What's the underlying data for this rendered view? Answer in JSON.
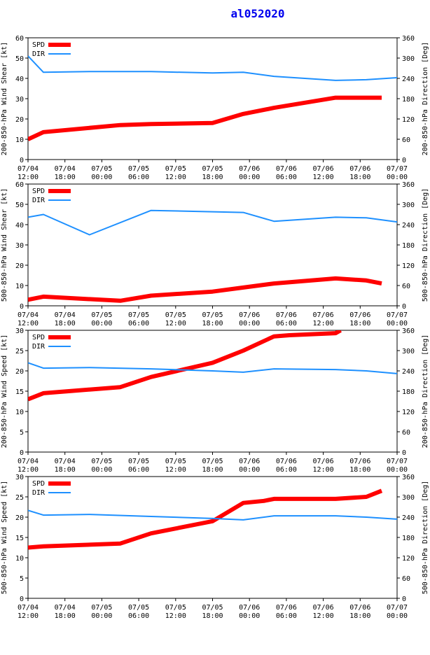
{
  "title": "al052020",
  "colors": {
    "spd": "#ff0000",
    "dir": "#1e90ff",
    "axis": "#000000",
    "title": "#0000ee"
  },
  "legend": {
    "spd": "SPD",
    "dir": "DIR"
  },
  "x_ticks": [
    [
      "07/04",
      "12:00"
    ],
    [
      "07/04",
      "18:00"
    ],
    [
      "07/05",
      "00:00"
    ],
    [
      "07/05",
      "06:00"
    ],
    [
      "07/05",
      "12:00"
    ],
    [
      "07/05",
      "18:00"
    ],
    [
      "07/06",
      "00:00"
    ],
    [
      "07/06",
      "06:00"
    ],
    [
      "07/06",
      "12:00"
    ],
    [
      "07/06",
      "18:00"
    ],
    [
      "07/07",
      "00:00"
    ]
  ],
  "chart_data": [
    {
      "type": "line",
      "ylabel_left": "200-850-hPa Wind Shear [kt]",
      "ylabel_right": "200-850-hPa Direction [Deg]",
      "ylim_left": [
        0,
        60
      ],
      "yticks_left": [
        0,
        10,
        20,
        30,
        40,
        50,
        60
      ],
      "ylim_right": [
        0,
        360
      ],
      "yticks_right": [
        0,
        60,
        120,
        180,
        240,
        300,
        360
      ],
      "xlim_hours": [
        0,
        72
      ],
      "series": [
        {
          "name": "SPD",
          "x_hours": [
            0,
            3,
            18,
            24,
            36,
            42,
            48,
            60,
            66,
            69
          ],
          "values": [
            10,
            13.5,
            17,
            17.5,
            18,
            22.5,
            25.5,
            30.5,
            30.5,
            30.5
          ]
        },
        {
          "name": "DIR",
          "x_hours": [
            0,
            3,
            12,
            24,
            36,
            42,
            48,
            60,
            66,
            72
          ],
          "values": [
            306,
            258,
            260,
            260,
            256,
            258,
            246,
            234,
            236,
            242
          ]
        }
      ]
    },
    {
      "type": "line",
      "ylabel_left": "500-850-hPa Wind Shear [kt]",
      "ylabel_right": "500-850-hPa Direction [Deg]",
      "ylim_left": [
        0,
        60
      ],
      "yticks_left": [
        0,
        10,
        20,
        30,
        40,
        50,
        60
      ],
      "ylim_right": [
        0,
        360
      ],
      "yticks_right": [
        0,
        60,
        120,
        180,
        240,
        300,
        360
      ],
      "xlim_hours": [
        0,
        72
      ],
      "series": [
        {
          "name": "SPD",
          "x_hours": [
            0,
            3,
            18,
            24,
            36,
            42,
            48,
            60,
            66,
            69
          ],
          "values": [
            3,
            4.5,
            2.5,
            5,
            7,
            9,
            11,
            13.5,
            12.5,
            11
          ]
        },
        {
          "name": "DIR",
          "x_hours": [
            0,
            3,
            12,
            24,
            36,
            42,
            48,
            60,
            66,
            72
          ],
          "values": [
            262,
            270,
            210,
            282,
            278,
            276,
            250,
            262,
            260,
            248
          ]
        }
      ]
    },
    {
      "type": "line",
      "ylabel_left": "200-850-hPa Wind Speed [kt]",
      "ylabel_right": "200-850-hPa Direction [Deg]",
      "ylim_left": [
        0,
        30
      ],
      "yticks_left": [
        0,
        5,
        10,
        15,
        20,
        25,
        30
      ],
      "ylim_right": [
        0,
        360
      ],
      "yticks_right": [
        0,
        60,
        120,
        180,
        240,
        300,
        360
      ],
      "xlim_hours": [
        0,
        72
      ],
      "series": [
        {
          "name": "SPD",
          "x_hours": [
            0,
            3,
            18,
            24,
            36,
            42,
            48,
            51,
            60,
            61
          ],
          "values": [
            13,
            14.5,
            16,
            18.5,
            22,
            25,
            28.5,
            28.8,
            29.3,
            30
          ]
        },
        {
          "name": "DIR",
          "x_hours": [
            0,
            3,
            12,
            24,
            36,
            42,
            48,
            60,
            66,
            72
          ],
          "values": [
            264,
            248,
            250,
            246,
            240,
            236,
            246,
            244,
            240,
            232
          ]
        }
      ]
    },
    {
      "type": "line",
      "ylabel_left": "500-850-hPa Wind Speed [kt]",
      "ylabel_right": "500-850-hPa Direction [Deg]",
      "ylim_left": [
        0,
        30
      ],
      "yticks_left": [
        0,
        5,
        10,
        15,
        20,
        25,
        30
      ],
      "ylim_right": [
        0,
        360
      ],
      "yticks_right": [
        0,
        60,
        120,
        180,
        240,
        300,
        360
      ],
      "xlim_hours": [
        0,
        72
      ],
      "series": [
        {
          "name": "SPD",
          "x_hours": [
            0,
            3,
            18,
            24,
            36,
            42,
            46,
            48,
            60,
            66,
            69
          ],
          "values": [
            12.5,
            12.8,
            13.5,
            16,
            19,
            23.5,
            24,
            24.5,
            24.5,
            25,
            26.5
          ]
        },
        {
          "name": "DIR",
          "x_hours": [
            0,
            3,
            12,
            24,
            36,
            42,
            48,
            60,
            66,
            72
          ],
          "values": [
            260,
            246,
            248,
            242,
            236,
            232,
            244,
            244,
            240,
            234
          ]
        }
      ]
    }
  ]
}
